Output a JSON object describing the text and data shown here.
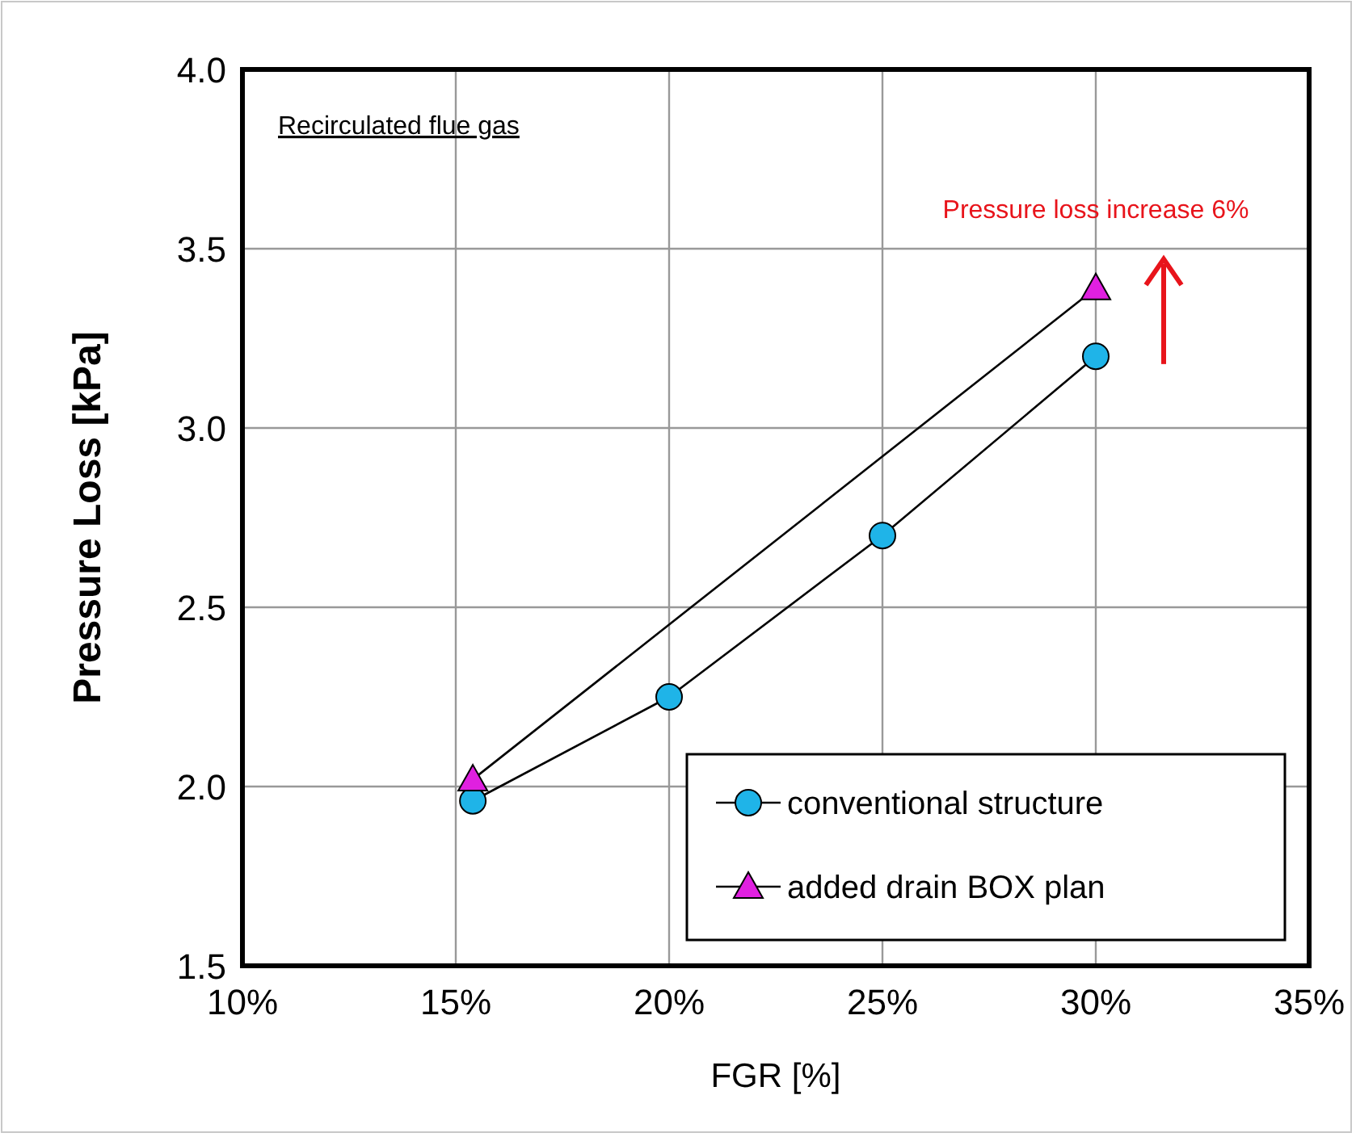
{
  "chart_data": {
    "type": "line",
    "xlabel": "FGR [%]",
    "ylabel": "Pressure Loss  [kPa]",
    "xlim": [
      10,
      35
    ],
    "xticks": [
      {
        "value": 10,
        "label": "10%"
      },
      {
        "value": 15,
        "label": "15%"
      },
      {
        "value": 20,
        "label": "20%"
      },
      {
        "value": 25,
        "label": "25%"
      },
      {
        "value": 30,
        "label": "30%"
      },
      {
        "value": 35,
        "label": "35%"
      }
    ],
    "ylim": [
      1.5,
      4.0
    ],
    "yticks": [
      {
        "value": 1.5,
        "label": "1.5"
      },
      {
        "value": 2.0,
        "label": "2.0"
      },
      {
        "value": 2.5,
        "label": "2.5"
      },
      {
        "value": 3.0,
        "label": "3.0"
      },
      {
        "value": 3.5,
        "label": "3.5"
      },
      {
        "value": 4.0,
        "label": "4.0"
      }
    ],
    "grid": true,
    "legend": "bottom right",
    "series": [
      {
        "name": "conventional structure",
        "color": "#1fb4e8",
        "marker": "circle",
        "x": [
          15.4,
          20,
          25,
          30
        ],
        "values": [
          1.96,
          2.25,
          2.7,
          3.2
        ]
      },
      {
        "name": "added drain BOX plan",
        "color": "#e020e0",
        "marker": "triangle",
        "x": [
          15.4,
          30
        ],
        "values": [
          2.02,
          3.39
        ]
      }
    ],
    "annotations": [
      "Recirculated flue gas",
      {
        "text": "Pressure loss increase 6%",
        "x": 30,
        "y": 3.39
      }
    ]
  }
}
